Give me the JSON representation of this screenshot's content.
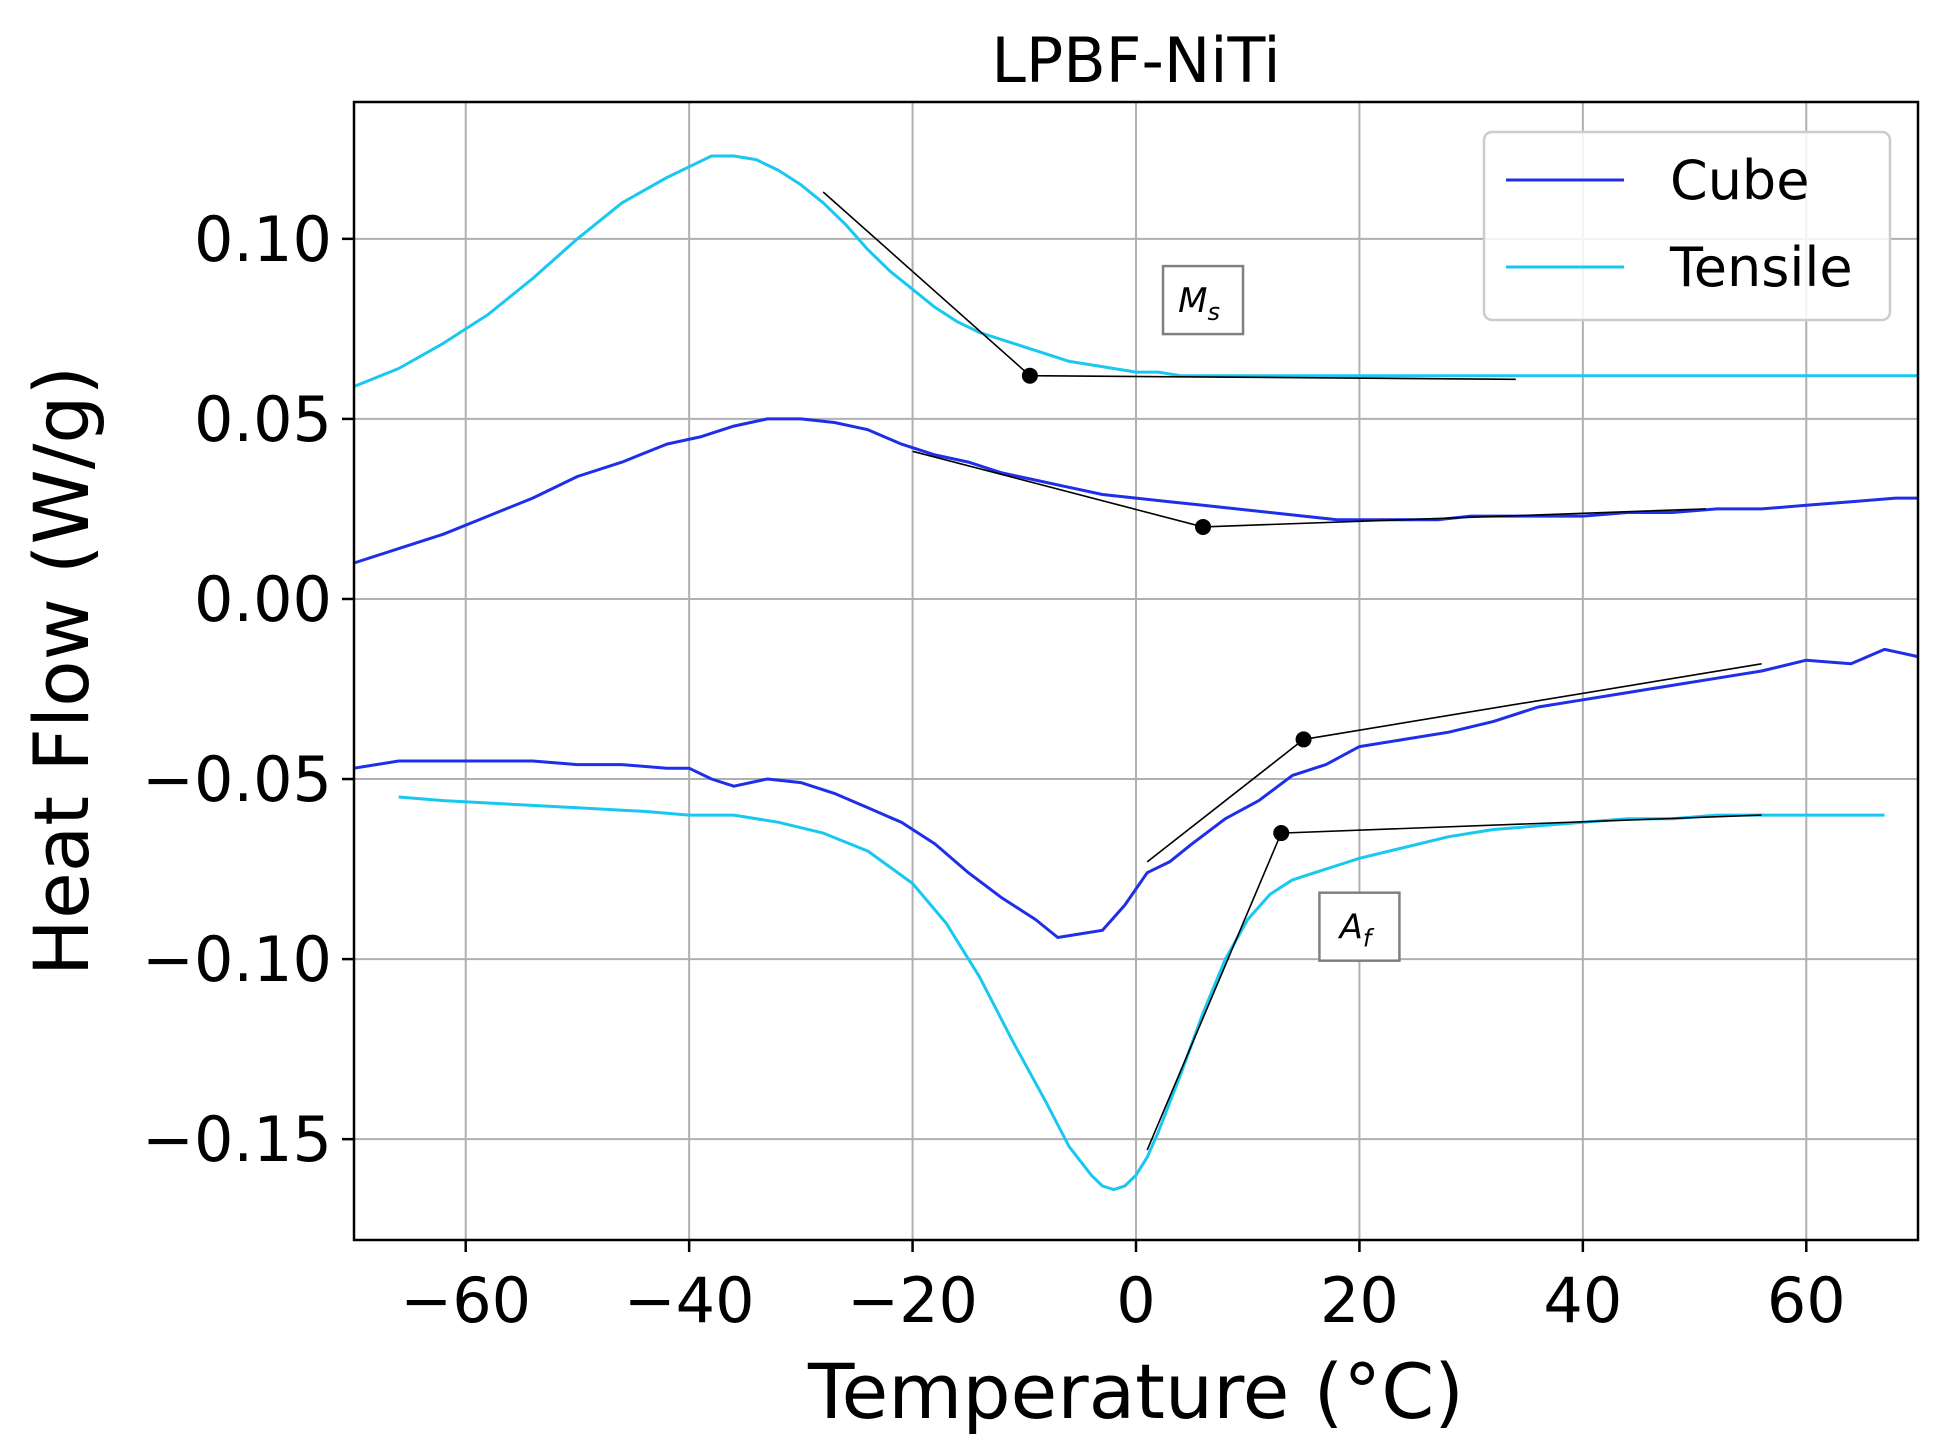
{
  "chart_data": {
    "type": "line",
    "title": "LPBF-NiTi",
    "xlabel": "Temperature (°C)",
    "ylabel": "Heat Flow (W/g)",
    "xlim": [
      -70,
      70
    ],
    "ylim": [
      -0.178,
      0.138
    ],
    "grid": true,
    "legend_position": "top-right",
    "x_ticks": [
      -60,
      -40,
      -20,
      0,
      20,
      40,
      60
    ],
    "x_tick_labels": [
      "−60",
      "−40",
      "−20",
      "0",
      "20",
      "40",
      "60"
    ],
    "y_ticks": [
      0.1,
      0.05,
      0.0,
      -0.05,
      -0.1,
      -0.15
    ],
    "y_tick_labels": [
      "0.10",
      "0.05",
      "0.00",
      "−0.05",
      "−0.10",
      "−0.15"
    ],
    "series": [
      {
        "name": "Cube",
        "color": "#1f2fe8",
        "segment": "cooling",
        "x": [
          -70,
          -66,
          -62,
          -58,
          -54,
          -50,
          -46,
          -42,
          -39,
          -36,
          -33,
          -30,
          -27,
          -24,
          -21,
          -18,
          -15,
          -12,
          -9,
          -6,
          -3,
          0,
          3,
          6,
          9,
          12,
          15,
          18,
          21,
          24,
          27,
          30,
          33,
          36,
          40,
          44,
          48,
          52,
          56,
          60,
          64,
          68,
          70
        ],
        "y": [
          0.01,
          0.014,
          0.018,
          0.023,
          0.028,
          0.034,
          0.038,
          0.043,
          0.045,
          0.048,
          0.05,
          0.05,
          0.049,
          0.047,
          0.043,
          0.04,
          0.038,
          0.035,
          0.033,
          0.031,
          0.029,
          0.028,
          0.027,
          0.026,
          0.025,
          0.024,
          0.023,
          0.022,
          0.022,
          0.022,
          0.022,
          0.023,
          0.023,
          0.023,
          0.023,
          0.024,
          0.024,
          0.025,
          0.025,
          0.026,
          0.027,
          0.028,
          0.028
        ]
      },
      {
        "name": "Cube",
        "color": "#1f2fe8",
        "segment": "heating",
        "x": [
          -70,
          -66,
          -62,
          -58,
          -54,
          -50,
          -46,
          -42,
          -40,
          -38,
          -36,
          -33,
          -30,
          -27,
          -24,
          -21,
          -18,
          -15,
          -12,
          -9,
          -7,
          -5,
          -3,
          -1,
          1,
          3,
          5,
          8,
          11,
          14,
          17,
          20,
          24,
          28,
          32,
          36,
          40,
          44,
          48,
          52,
          56,
          60,
          64,
          67,
          70
        ],
        "y": [
          -0.047,
          -0.045,
          -0.045,
          -0.045,
          -0.045,
          -0.046,
          -0.046,
          -0.047,
          -0.047,
          -0.05,
          -0.052,
          -0.05,
          -0.051,
          -0.054,
          -0.058,
          -0.062,
          -0.068,
          -0.076,
          -0.083,
          -0.089,
          -0.094,
          -0.093,
          -0.092,
          -0.085,
          -0.076,
          -0.073,
          -0.068,
          -0.061,
          -0.056,
          -0.049,
          -0.046,
          -0.041,
          -0.039,
          -0.037,
          -0.034,
          -0.03,
          -0.028,
          -0.026,
          -0.024,
          -0.022,
          -0.02,
          -0.017,
          -0.018,
          -0.014,
          -0.016
        ]
      },
      {
        "name": "Tensile",
        "color": "#18c8f0",
        "segment": "cooling",
        "x": [
          -70,
          -66,
          -62,
          -58,
          -54,
          -50,
          -46,
          -42,
          -40,
          -38,
          -36,
          -34,
          -32,
          -30,
          -28,
          -26,
          -24,
          -22,
          -20,
          -18,
          -16,
          -14,
          -12,
          -10,
          -8,
          -6,
          -4,
          -2,
          0,
          2,
          4,
          6,
          8,
          10,
          14,
          18,
          24,
          30,
          40,
          50,
          60,
          70
        ],
        "y": [
          0.059,
          0.064,
          0.071,
          0.079,
          0.089,
          0.1,
          0.11,
          0.117,
          0.12,
          0.123,
          0.123,
          0.122,
          0.119,
          0.115,
          0.11,
          0.104,
          0.097,
          0.091,
          0.086,
          0.081,
          0.077,
          0.074,
          0.072,
          0.07,
          0.068,
          0.066,
          0.065,
          0.064,
          0.063,
          0.063,
          0.062,
          0.062,
          0.062,
          0.062,
          0.062,
          0.062,
          0.062,
          0.062,
          0.062,
          0.062,
          0.062,
          0.062
        ]
      },
      {
        "name": "Tensile",
        "color": "#18c8f0",
        "segment": "heating",
        "x": [
          -66,
          -62,
          -56,
          -50,
          -44,
          -40,
          -36,
          -32,
          -28,
          -24,
          -20,
          -17,
          -14,
          -11,
          -8,
          -6,
          -4,
          -3,
          -2,
          -1,
          0,
          1,
          2,
          4,
          6,
          8,
          10,
          12,
          14,
          16,
          18,
          20,
          24,
          28,
          32,
          36,
          40,
          44,
          48,
          52,
          56,
          60,
          64,
          67
        ],
        "y": [
          -0.055,
          -0.056,
          -0.057,
          -0.058,
          -0.059,
          -0.06,
          -0.06,
          -0.062,
          -0.065,
          -0.07,
          -0.079,
          -0.09,
          -0.105,
          -0.123,
          -0.14,
          -0.152,
          -0.16,
          -0.163,
          -0.164,
          -0.163,
          -0.16,
          -0.155,
          -0.148,
          -0.132,
          -0.115,
          -0.1,
          -0.089,
          -0.082,
          -0.078,
          -0.076,
          -0.074,
          -0.072,
          -0.069,
          -0.066,
          -0.064,
          -0.063,
          -0.062,
          -0.061,
          -0.061,
          -0.06,
          -0.06,
          -0.06,
          -0.06,
          -0.06
        ]
      }
    ],
    "tangent_lines": [
      {
        "name": "tensile-cooling-ms",
        "points": [
          [
            -28,
            0.113
          ],
          [
            -9.5,
            0.062
          ],
          [
            34,
            0.061
          ]
        ]
      },
      {
        "name": "cube-cooling",
        "points": [
          [
            -20,
            0.041
          ],
          [
            6,
            0.02
          ],
          [
            51,
            0.025
          ]
        ]
      },
      {
        "name": "cube-heating",
        "points": [
          [
            1,
            -0.073
          ],
          [
            15,
            -0.039
          ],
          [
            56,
            -0.018
          ]
        ]
      },
      {
        "name": "tensile-heating-af",
        "points": [
          [
            1,
            -0.153
          ],
          [
            13,
            -0.065
          ],
          [
            56,
            -0.06
          ]
        ]
      }
    ],
    "markers": [
      {
        "name": "ms-point",
        "x": -9.5,
        "y": 0.062
      },
      {
        "name": "cube-cooling-point",
        "x": 6,
        "y": 0.02
      },
      {
        "name": "cube-heating-point",
        "x": 15,
        "y": -0.039
      },
      {
        "name": "af-point",
        "x": 13,
        "y": -0.065
      }
    ],
    "annotations": [
      {
        "name": "ms-annotation",
        "base": "M",
        "sub": "s",
        "x": 6,
        "y": 0.083
      },
      {
        "name": "af-annotation",
        "base": "A",
        "sub": "f",
        "x": 20,
        "y": -0.091
      }
    ],
    "legend": [
      {
        "label": "Cube",
        "color": "#1f2fe8"
      },
      {
        "label": "Tensile",
        "color": "#18c8f0"
      }
    ]
  }
}
